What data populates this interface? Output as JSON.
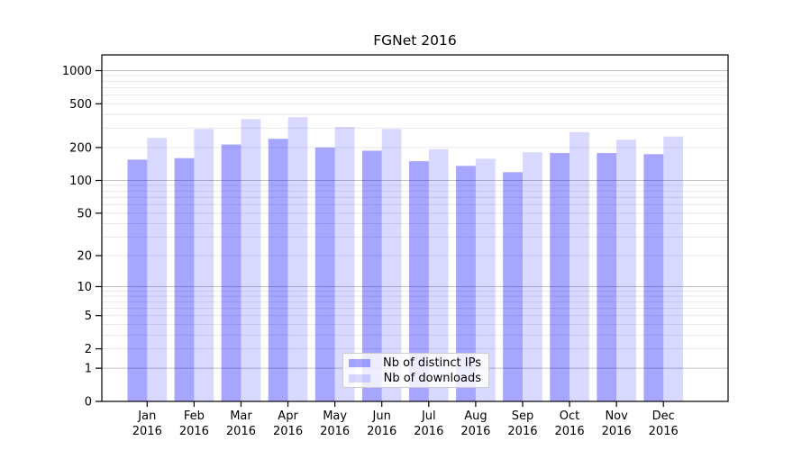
{
  "title": "FGNet 2016",
  "chart_data": {
    "type": "bar",
    "title": "FGNet 2016",
    "categories": [
      "Jan",
      "Feb",
      "Mar",
      "Apr",
      "May",
      "Jun",
      "Jul",
      "Aug",
      "Sep",
      "Oct",
      "Nov",
      "Dec"
    ],
    "category_year": "2016",
    "series": [
      {
        "name": "Nb of distinct IPs",
        "color": "rgba(0,0,255,0.35)",
        "values": [
          155,
          160,
          213,
          240,
          200,
          187,
          150,
          136,
          119,
          178,
          178,
          174
        ]
      },
      {
        "name": "Nb of downloads",
        "color": "rgba(0,0,255,0.15)",
        "values": [
          245,
          295,
          363,
          378,
          308,
          295,
          193,
          158,
          181,
          276,
          236,
          252
        ]
      }
    ],
    "yscale": "log1p",
    "yticks": [
      0,
      1,
      2,
      5,
      10,
      20,
      50,
      100,
      200,
      500,
      1000
    ],
    "ylim": [
      0,
      1390
    ],
    "grid": true,
    "legend_position": "lower center",
    "colors": {
      "major_grid": "#c2c2c2",
      "minor_grid": "#e7e7e7",
      "spine": "#000000",
      "tick_text": "#000000"
    }
  }
}
